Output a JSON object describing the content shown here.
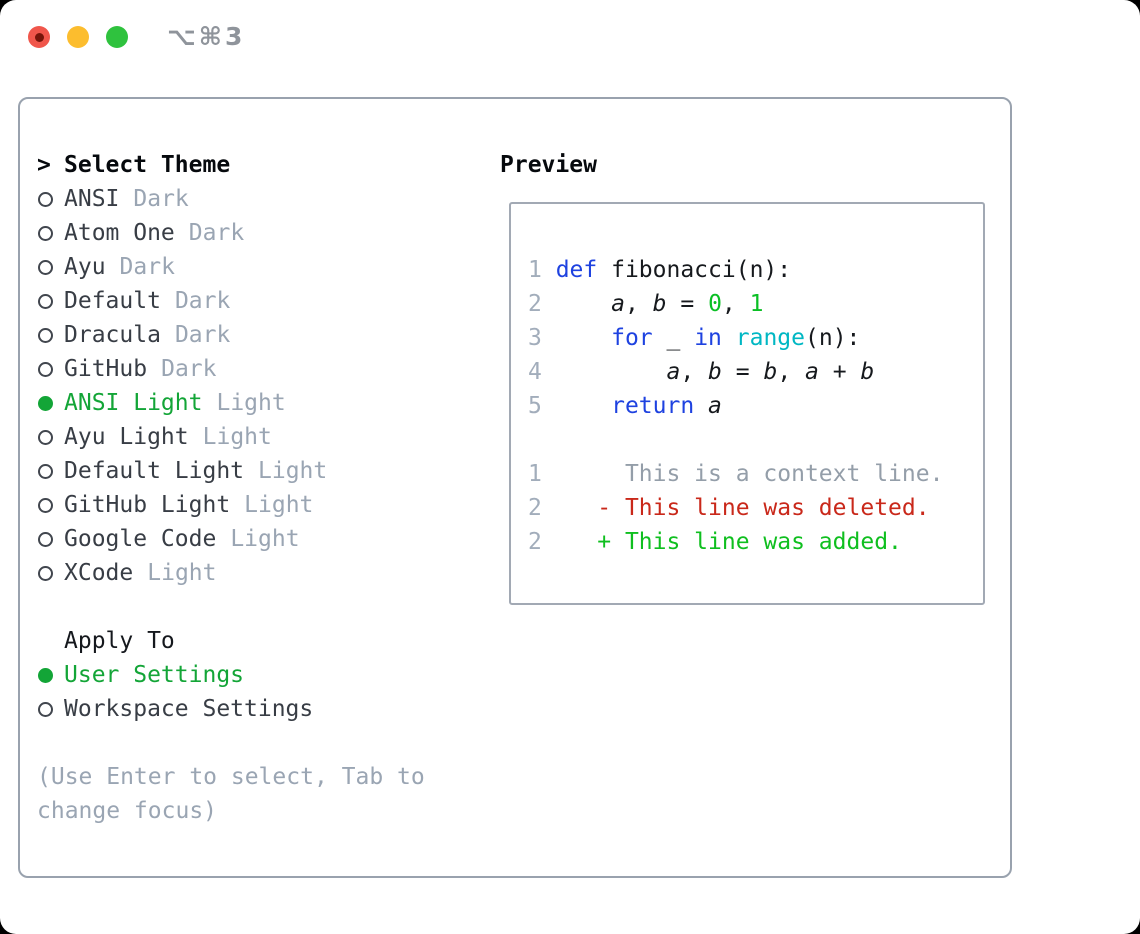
{
  "window": {
    "titlebar_shortcut": "⌥⌘3"
  },
  "theme_picker": {
    "heading_prefix": ">",
    "heading": "Select Theme",
    "items": [
      {
        "name": "ANSI",
        "variant": "Dark",
        "selected": false
      },
      {
        "name": "Atom One",
        "variant": "Dark",
        "selected": false
      },
      {
        "name": "Ayu",
        "variant": "Dark",
        "selected": false
      },
      {
        "name": "Default",
        "variant": "Dark",
        "selected": false
      },
      {
        "name": "Dracula",
        "variant": "Dark",
        "selected": false
      },
      {
        "name": "GitHub",
        "variant": "Dark",
        "selected": false
      },
      {
        "name": "ANSI Light",
        "variant": "Light",
        "selected": true
      },
      {
        "name": "Ayu Light",
        "variant": "Light",
        "selected": false
      },
      {
        "name": "Default Light",
        "variant": "Light",
        "selected": false
      },
      {
        "name": "GitHub Light",
        "variant": "Light",
        "selected": false
      },
      {
        "name": "Google Code",
        "variant": "Light",
        "selected": false
      },
      {
        "name": "XCode",
        "variant": "Light",
        "selected": false
      }
    ]
  },
  "apply_to": {
    "heading": "Apply To",
    "options": [
      {
        "label": "User Settings",
        "selected": true
      },
      {
        "label": "Workspace Settings",
        "selected": false
      }
    ]
  },
  "hint": "(Use Enter to select, Tab to change focus)",
  "preview": {
    "heading": "Preview",
    "lines": [
      {
        "num": "1",
        "type": "code",
        "segments": [
          [
            "kw",
            "def"
          ],
          [
            "plain",
            " fibonacci(n):"
          ]
        ]
      },
      {
        "num": "2",
        "type": "code",
        "segments": [
          [
            "plain",
            "    "
          ],
          [
            "var",
            "a"
          ],
          [
            "plain",
            ", "
          ],
          [
            "var",
            "b"
          ],
          [
            "plain",
            " = "
          ],
          [
            "lit",
            "0"
          ],
          [
            "plain",
            ", "
          ],
          [
            "lit",
            "1"
          ]
        ]
      },
      {
        "num": "3",
        "type": "code",
        "segments": [
          [
            "plain",
            "    "
          ],
          [
            "kw",
            "for"
          ],
          [
            "plain",
            " _ "
          ],
          [
            "kw",
            "in"
          ],
          [
            "plain",
            " "
          ],
          [
            "fn",
            "range"
          ],
          [
            "plain",
            "(n):"
          ]
        ]
      },
      {
        "num": "4",
        "type": "code",
        "segments": [
          [
            "plain",
            "        "
          ],
          [
            "var",
            "a"
          ],
          [
            "plain",
            ", "
          ],
          [
            "var",
            "b"
          ],
          [
            "plain",
            " = "
          ],
          [
            "var",
            "b"
          ],
          [
            "plain",
            ", "
          ],
          [
            "var",
            "a"
          ],
          [
            "plain",
            " + "
          ],
          [
            "var",
            "b"
          ]
        ]
      },
      {
        "num": "5",
        "type": "code",
        "segments": [
          [
            "plain",
            "    "
          ],
          [
            "kw",
            "return"
          ],
          [
            "plain",
            " "
          ],
          [
            "var",
            "a"
          ]
        ]
      },
      {
        "num": "",
        "type": "blank",
        "segments": []
      },
      {
        "num": "1",
        "type": "context",
        "segments": [
          [
            "ctx",
            "     This is a context line."
          ]
        ]
      },
      {
        "num": "2",
        "type": "deleted",
        "segments": [
          [
            "del",
            "   - This line was deleted."
          ]
        ]
      },
      {
        "num": "2",
        "type": "added",
        "segments": [
          [
            "add",
            "   + This line was added."
          ]
        ]
      }
    ]
  },
  "colors": {
    "close": "#f0564b",
    "minimize": "#fcbd2e",
    "zoom": "#2fc23e",
    "border": "#99a2ae",
    "text": "#383d45",
    "muted": "#9aa5b3",
    "selected": "#13a537",
    "keyword": "#1e42e0",
    "function": "#00b7c3",
    "literal": "#0abf24",
    "line_number": "#a2adbb",
    "context": "#949ea9",
    "deleted": "#c9281a",
    "added": "#0fbf1f"
  }
}
